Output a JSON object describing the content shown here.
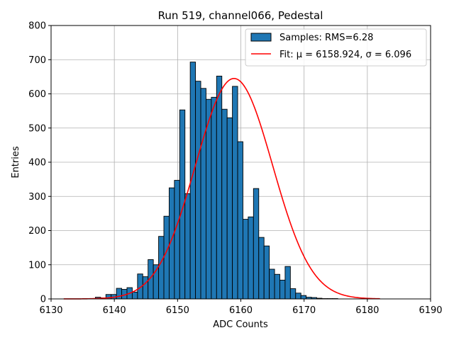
{
  "chart_data": {
    "type": "bar",
    "title": "Run 519, channel066, Pedestal",
    "xlabel": "ADC Counts",
    "ylabel": "Entries",
    "xlim": [
      6130,
      6190
    ],
    "ylim": [
      0,
      800
    ],
    "xticks": [
      6130,
      6140,
      6150,
      6160,
      6170,
      6180,
      6190
    ],
    "yticks": [
      0,
      100,
      200,
      300,
      400,
      500,
      600,
      700,
      800
    ],
    "grid": true,
    "legend_position": "top-right",
    "bar_color": "#1f77b4",
    "fit_color": "#ff0000",
    "bins": {
      "start": 6137,
      "width": 0.8333,
      "values": [
        5,
        3,
        13,
        13,
        31,
        28,
        33,
        20,
        73,
        65,
        115,
        100,
        183,
        242,
        325,
        347,
        553,
        308,
        693,
        637,
        616,
        584,
        590,
        652,
        555,
        530,
        622,
        460,
        233,
        240,
        323,
        180,
        155,
        87,
        72,
        55,
        95,
        30,
        17,
        10,
        5,
        4,
        2,
        1,
        1,
        1
      ]
    },
    "series": [
      {
        "name": "Samples: RMS=6.28",
        "kind": "histogram"
      },
      {
        "name": "Fit: μ = 6158.924, σ = 6.096",
        "kind": "gaussian",
        "amplitude": 645,
        "mu": 6158.924,
        "sigma": 6.096,
        "x_range": [
          6132,
          6182
        ]
      }
    ]
  }
}
